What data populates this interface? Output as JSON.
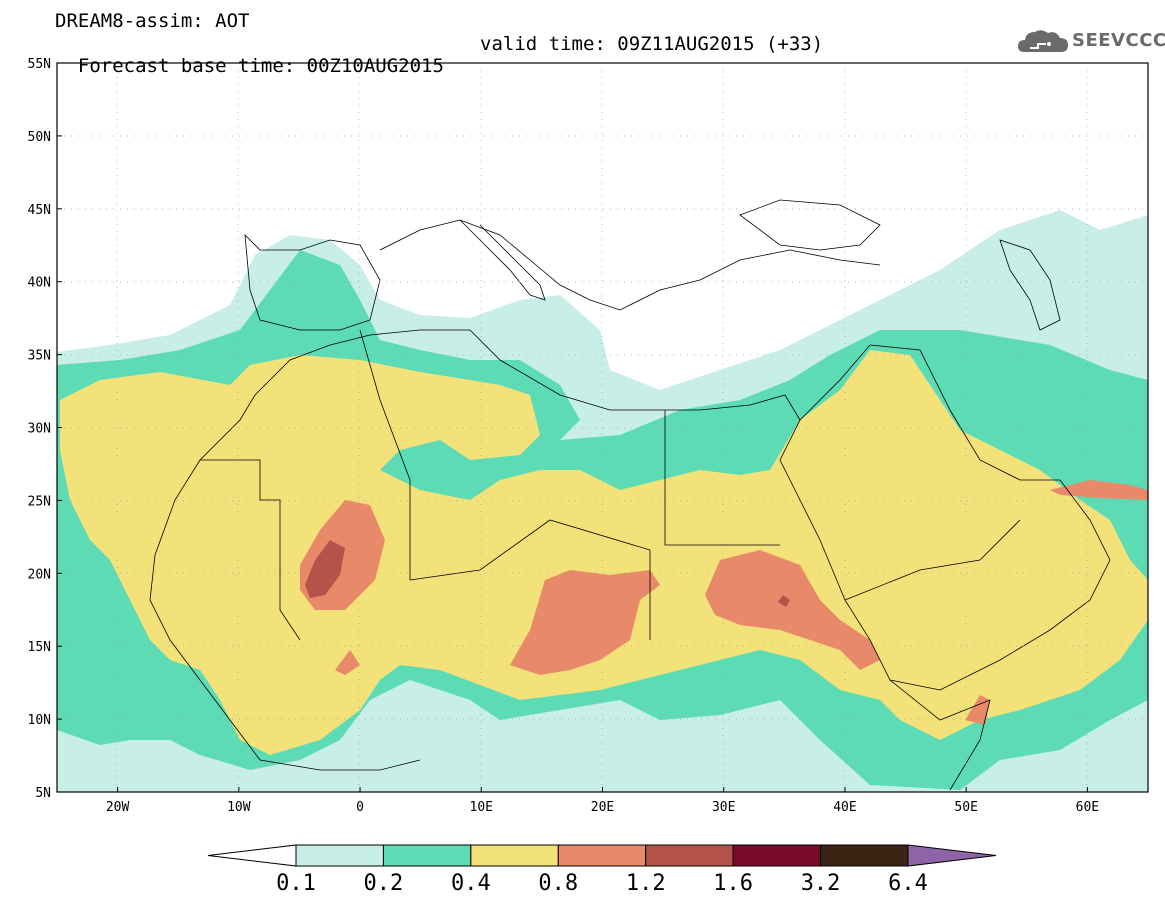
{
  "header": {
    "title": "DREAM8-assim: AOT",
    "base_time": "Forecast base time: 00Z10AUG2015",
    "valid_time": "valid time: 09Z11AUG2015 (+33)",
    "logo_text": "SEEVCCC"
  },
  "map": {
    "region": "North Africa / Middle East",
    "projection": "cylindrical",
    "lon_range": [
      -25,
      65
    ],
    "lat_range": [
      5,
      55
    ],
    "gridlines": "dotted",
    "x_ticks": [
      "20W",
      "10W",
      "0",
      "10E",
      "20E",
      "30E",
      "40E",
      "50E",
      "60E"
    ],
    "y_ticks": [
      "55N",
      "50N",
      "45N",
      "40N",
      "35N",
      "30N",
      "25N",
      "20N",
      "15N",
      "10N",
      "5N"
    ],
    "land_color": "#ffffff",
    "border_color": "#000000"
  },
  "colorbar": {
    "labels": [
      "0.1",
      "0.2",
      "0.4",
      "0.8",
      "1.2",
      "1.6",
      "3.2",
      "6.4"
    ],
    "colors": [
      "#ffffff",
      "#c8eee8",
      "#5ddbb5",
      "#f3e27a",
      "#e8896a",
      "#b4534a",
      "#7a0c2b",
      "#3b2414",
      "#8e63a8"
    ]
  }
}
